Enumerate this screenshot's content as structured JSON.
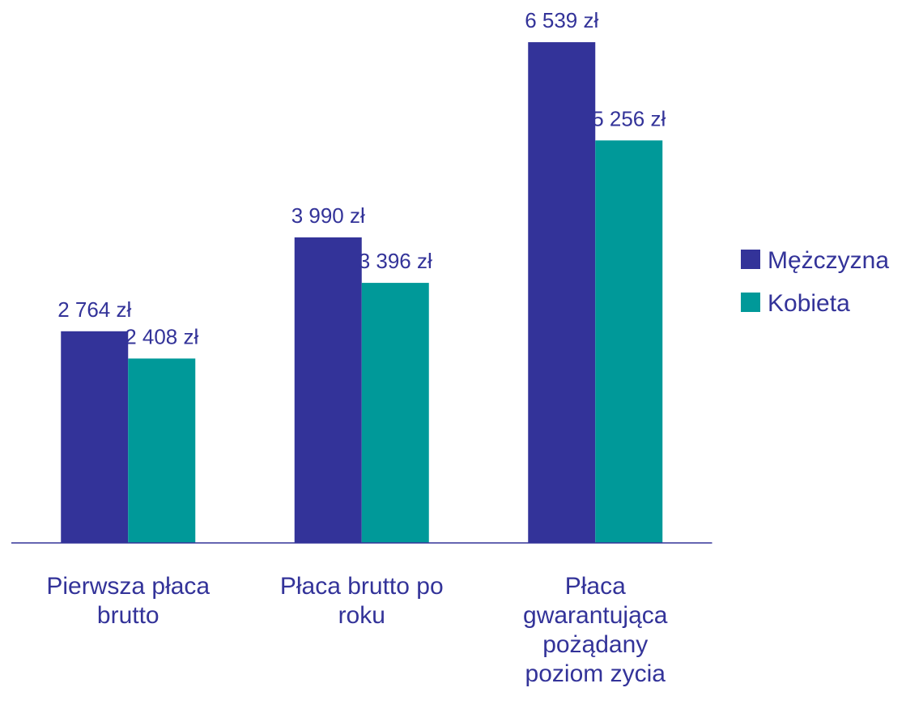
{
  "chart_data": {
    "type": "bar",
    "categories": [
      "Pierwsza płaca\nbrutto",
      "Płaca brutto po\nroku",
      "Płaca\ngwarantująca\npożądany\npoziom zycia"
    ],
    "series": [
      {
        "name": "Mężczyzna",
        "color": "#333399",
        "values": [
          2764,
          3990,
          6539
        ],
        "value_labels": [
          "2 764 zł",
          "3 990 zł",
          "6 539 zł"
        ]
      },
      {
        "name": "Kobieta",
        "color": "#009999",
        "values": [
          2408,
          3396,
          5256
        ],
        "value_labels": [
          "2 408 zł",
          "3 396 zł",
          "5 256 zł"
        ]
      }
    ],
    "ylim": [
      0,
      7000
    ],
    "legend": "right"
  }
}
